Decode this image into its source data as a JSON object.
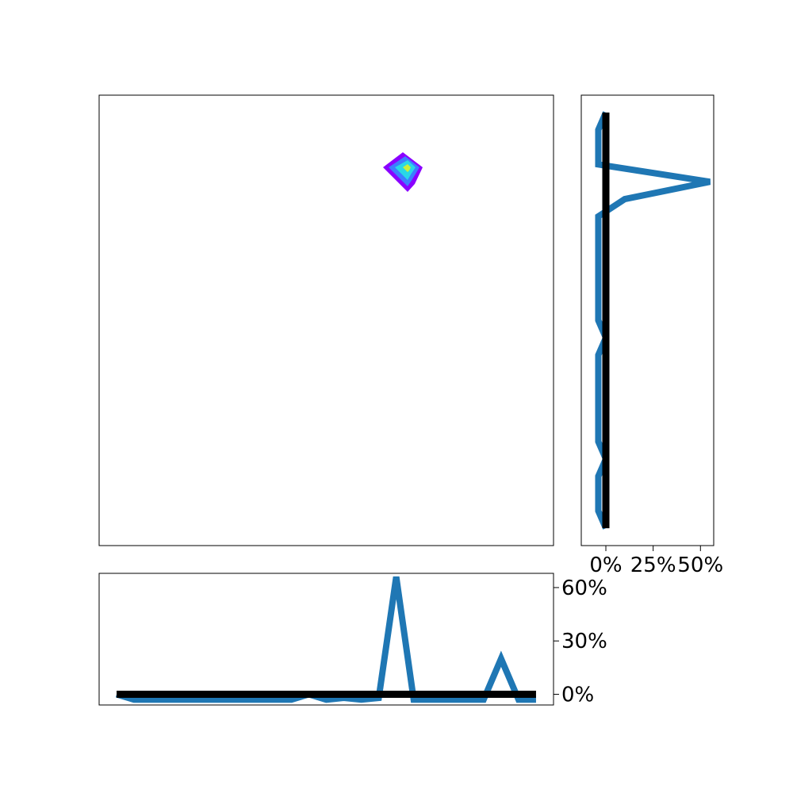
{
  "chart_data": [
    {
      "panel": "main",
      "type": "contour",
      "description_values": {
        "peak_levels": 4,
        "grid_cols": 25,
        "grid_rows": 25
      },
      "colors": [
        "#8a00ff",
        "#3d7dff",
        "#29d8e6",
        "#c9ef3b"
      ],
      "show_axes_ticks": false
    },
    {
      "panel": "right",
      "type": "line",
      "orientation": "vertical",
      "xlim": [
        -0.13,
        0.57
      ],
      "ylim": [
        -1,
        25
      ],
      "x_ticks": [
        {
          "value": 0.0,
          "label": "0%"
        },
        {
          "value": 0.25,
          "label": "25%"
        },
        {
          "value": 0.5,
          "label": "50%"
        }
      ],
      "series": [
        {
          "color": "#1f77b4",
          "values": [
            0.0,
            -0.04,
            -0.04,
            -0.04,
            0.0,
            -0.04,
            -0.04,
            -0.04,
            -0.04,
            -0.04,
            -0.04,
            0.0,
            -0.04,
            -0.04,
            -0.04,
            -0.04,
            -0.04,
            -0.04,
            -0.04,
            0.1,
            0.55,
            -0.04,
            -0.04,
            -0.04,
            0.0
          ],
          "y": [
            0,
            1,
            2,
            3,
            4,
            5,
            6,
            7,
            8,
            9,
            10,
            11,
            12,
            13,
            14,
            15,
            16,
            17,
            18,
            19,
            20,
            21,
            22,
            23,
            24
          ]
        },
        {
          "color": "#000000",
          "values": [
            0.0,
            0.0
          ],
          "y": [
            0,
            24
          ]
        }
      ]
    },
    {
      "panel": "bottom",
      "type": "line",
      "xlim": [
        -1,
        25
      ],
      "ylim": [
        -0.06,
        0.68
      ],
      "y_ticks": [
        {
          "value": 0.0,
          "label": "0%"
        },
        {
          "value": 0.3,
          "label": "30%"
        },
        {
          "value": 0.6,
          "label": "60%"
        }
      ],
      "series": [
        {
          "color": "#1f77b4",
          "x": [
            0,
            1,
            2,
            3,
            4,
            5,
            6,
            7,
            8,
            9,
            10,
            11,
            12,
            13,
            14,
            15,
            16,
            17,
            18,
            19,
            20,
            21,
            22,
            23,
            24
          ],
          "values": [
            0.0,
            -0.03,
            -0.03,
            -0.03,
            -0.03,
            -0.03,
            -0.03,
            -0.03,
            -0.03,
            -0.03,
            -0.03,
            0.0,
            -0.03,
            -0.02,
            -0.03,
            -0.02,
            0.66,
            -0.03,
            -0.03,
            -0.03,
            -0.03,
            -0.03,
            0.2,
            -0.03,
            -0.03
          ]
        },
        {
          "color": "#000000",
          "x": [
            0,
            24
          ],
          "values": [
            0.0,
            0.0
          ]
        }
      ]
    }
  ]
}
